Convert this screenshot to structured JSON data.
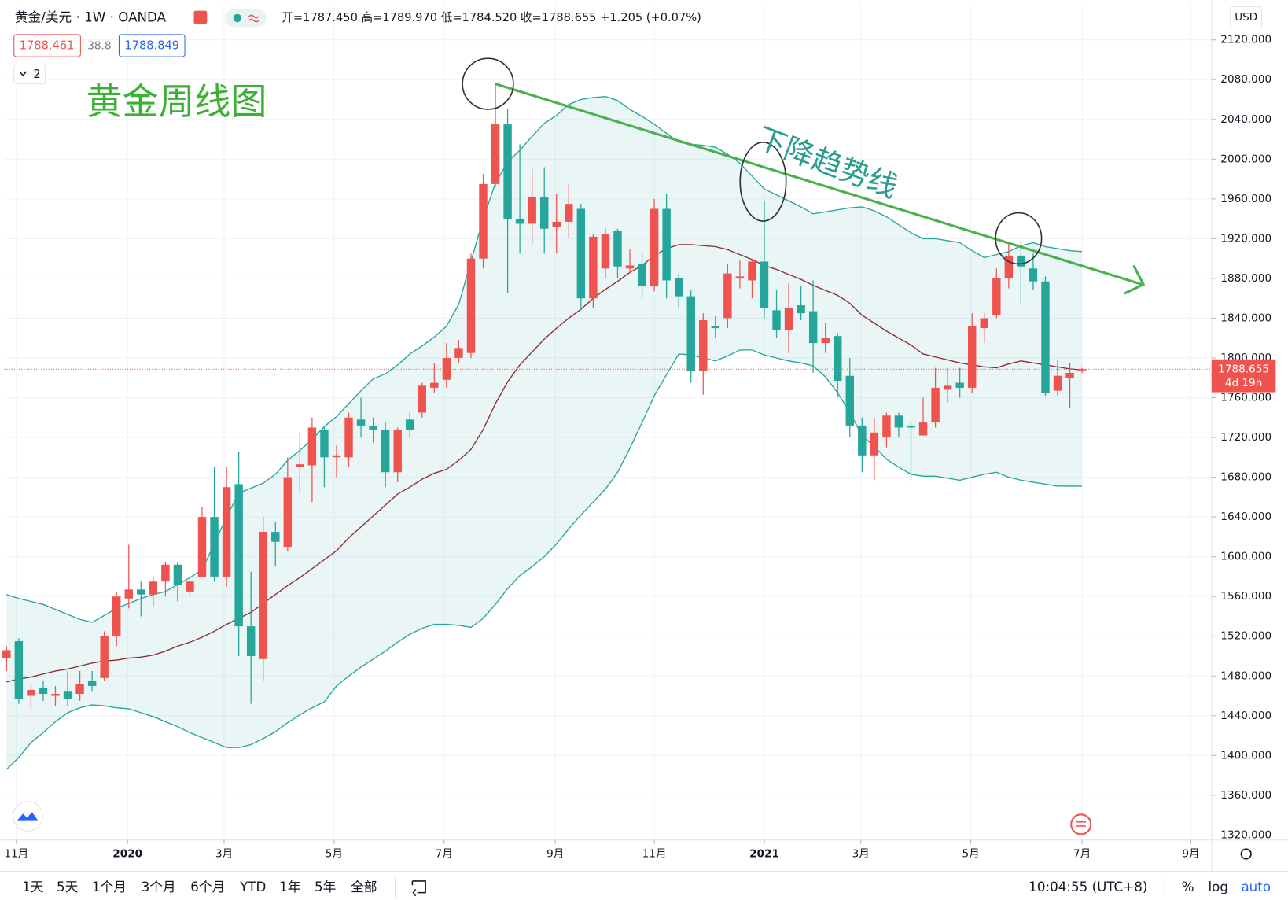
{
  "header": {
    "title": "黄金/美元 · 1W · OANDA",
    "ohlc": "开=1787.450 高=1789.970 低=1784.520 收=1788.655 +1.205 (+0.07%)",
    "bid": "1788.461",
    "spread": "38.8",
    "ask": "1788.849",
    "indicators_count": "2"
  },
  "annotations": {
    "chart_title": "黄金周线图",
    "trendline_label": "下降趋势线"
  },
  "price_axis": {
    "currency": "USD",
    "countdown": "4d 19h"
  },
  "toolbar": {
    "ranges": [
      "1天",
      "5天",
      "1个月",
      "3个月",
      "6个月",
      "YTD",
      "1年",
      "5年",
      "全部"
    ],
    "time": "10:04:55 (UTC+8)",
    "options": [
      "%",
      "log",
      "auto"
    ]
  },
  "chart_data": {
    "type": "candlestick",
    "open": [
      1498,
      1515,
      1460,
      1468,
      1460,
      1465,
      1462,
      1475,
      1478,
      1520,
      1558,
      1567,
      1562,
      1575,
      1592,
      1565,
      1580,
      1640,
      1580,
      1673,
      1530,
      1497,
      1625,
      1610,
      1690,
      1692,
      1728,
      1700,
      1700,
      1738,
      1732,
      1728,
      1685,
      1738,
      1745,
      1770,
      1778,
      1800,
      1805,
      1900,
      1975,
      2035,
      1940,
      1935,
      1962,
      1932,
      1937,
      1950,
      1860,
      1890,
      1928,
      1890,
      1895,
      1872,
      1950,
      1880,
      1862,
      1787,
      1832,
      1840,
      1880,
      1878,
      1897,
      1848,
      1828,
      1853,
      1847,
      1815,
      1822,
      1782,
      1732,
      1702,
      1720,
      1742,
      1732,
      1722,
      1735,
      1768,
      1775,
      1770,
      1830,
      1843,
      1880,
      1903,
      1890,
      1877,
      1767,
      1780,
      1787.45
    ],
    "high": [
      1510,
      1518,
      1472,
      1475,
      1470,
      1485,
      1485,
      1485,
      1525,
      1565,
      1612,
      1575,
      1580,
      1595,
      1595,
      1580,
      1650,
      1690,
      1690,
      1705,
      1585,
      1640,
      1635,
      1700,
      1725,
      1740,
      1730,
      1712,
      1745,
      1760,
      1740,
      1735,
      1730,
      1745,
      1775,
      1795,
      1815,
      1818,
      1905,
      1985,
      2075,
      2050,
      2015,
      1990,
      1992,
      1965,
      1975,
      1955,
      1925,
      1930,
      1930,
      1910,
      1905,
      1960,
      1965,
      1885,
      1868,
      1845,
      1842,
      1895,
      1898,
      1900,
      1958,
      1868,
      1875,
      1872,
      1878,
      1835,
      1825,
      1800,
      1740,
      1740,
      1745,
      1745,
      1735,
      1760,
      1790,
      1790,
      1790,
      1845,
      1845,
      1890,
      1915,
      1918,
      1905,
      1882,
      1798,
      1795,
      1789.97
    ],
    "low": [
      1485,
      1452,
      1447,
      1455,
      1450,
      1450,
      1455,
      1465,
      1475,
      1510,
      1548,
      1540,
      1550,
      1560,
      1555,
      1560,
      1580,
      1575,
      1570,
      1500,
      1452,
      1475,
      1590,
      1605,
      1665,
      1655,
      1670,
      1680,
      1690,
      1720,
      1715,
      1670,
      1675,
      1720,
      1740,
      1765,
      1770,
      1795,
      1800,
      1890,
      1972,
      1865,
      1905,
      1915,
      1905,
      1905,
      1920,
      1848,
      1850,
      1880,
      1880,
      1885,
      1860,
      1867,
      1860,
      1850,
      1775,
      1763,
      1820,
      1830,
      1870,
      1860,
      1840,
      1820,
      1805,
      1838,
      1785,
      1805,
      1760,
      1720,
      1685,
      1677,
      1710,
      1720,
      1677,
      1722,
      1730,
      1755,
      1760,
      1765,
      1815,
      1840,
      1870,
      1855,
      1868,
      1762,
      1762,
      1750,
      1784.52
    ],
    "close": [
      1506,
      1457,
      1466,
      1462,
      1462,
      1457,
      1472,
      1470,
      1520,
      1560,
      1567,
      1562,
      1575,
      1592,
      1572,
      1575,
      1640,
      1580,
      1670,
      1530,
      1500,
      1625,
      1615,
      1680,
      1693,
      1730,
      1700,
      1702,
      1740,
      1732,
      1728,
      1685,
      1728,
      1728,
      1772,
      1775,
      1800,
      1810,
      1900,
      1975,
      2035,
      1940,
      1935,
      1962,
      1930,
      1937,
      1955,
      1860,
      1922,
      1925,
      1892,
      1893,
      1872,
      1950,
      1878,
      1862,
      1787,
      1838,
      1830,
      1885,
      1882,
      1897,
      1850,
      1828,
      1850,
      1845,
      1815,
      1820,
      1777,
      1732,
      1702,
      1725,
      1742,
      1730,
      1730,
      1735,
      1770,
      1772,
      1770,
      1832,
      1840,
      1880,
      1903,
      1892,
      1877,
      1765,
      1782,
      1785,
      1788.655
    ],
    "up_color": "#ef5350",
    "down_color": "#26a69a",
    "bands": {
      "upper": [
        1562,
        1558,
        1555,
        1552,
        1547,
        1542,
        1537,
        1534,
        1541,
        1548,
        1553,
        1558,
        1562,
        1565,
        1572,
        1579,
        1587,
        1613,
        1640,
        1664,
        1669,
        1674,
        1683,
        1697,
        1707,
        1718,
        1731,
        1741,
        1754,
        1767,
        1779,
        1784,
        1793,
        1804,
        1812,
        1821,
        1832,
        1854,
        1897,
        1940,
        1976,
        1997,
        2009,
        2023,
        2036,
        2044,
        2055,
        2060,
        2062,
        2063,
        2059,
        2050,
        2043,
        2035,
        2026,
        2017,
        2015,
        2014,
        2012,
        2005,
        1996,
        1983,
        1970,
        1964,
        1958,
        1952,
        1945,
        1947,
        1949,
        1951,
        1952,
        1948,
        1942,
        1934,
        1926,
        1920,
        1920,
        1918,
        1916,
        1908,
        1901,
        1904,
        1907,
        1913,
        1916,
        1912,
        1910,
        1908,
        1907
      ],
      "middle": [
        1474,
        1477,
        1479,
        1482,
        1485,
        1487,
        1490,
        1493,
        1495,
        1496,
        1498,
        1499,
        1501,
        1505,
        1510,
        1514,
        1519,
        1525,
        1532,
        1538,
        1544,
        1553,
        1562,
        1571,
        1579,
        1588,
        1597,
        1606,
        1619,
        1630,
        1641,
        1652,
        1663,
        1670,
        1678,
        1684,
        1688,
        1697,
        1708,
        1728,
        1754,
        1776,
        1793,
        1806,
        1819,
        1830,
        1840,
        1849,
        1860,
        1869,
        1877,
        1886,
        1893,
        1903,
        1910,
        1914,
        1914,
        1913,
        1912,
        1909,
        1904,
        1899,
        1893,
        1889,
        1884,
        1879,
        1873,
        1868,
        1863,
        1855,
        1843,
        1835,
        1827,
        1820,
        1813,
        1804,
        1801,
        1798,
        1795,
        1793,
        1791,
        1790,
        1794,
        1797,
        1795,
        1793,
        1791,
        1789,
        1788
      ],
      "lower": [
        1386,
        1398,
        1413,
        1423,
        1434,
        1443,
        1448,
        1451,
        1450,
        1448,
        1447,
        1443,
        1439,
        1434,
        1429,
        1423,
        1418,
        1413,
        1408,
        1408,
        1411,
        1417,
        1424,
        1433,
        1441,
        1448,
        1454,
        1470,
        1480,
        1489,
        1497,
        1505,
        1514,
        1522,
        1528,
        1532,
        1532,
        1531,
        1529,
        1538,
        1552,
        1568,
        1581,
        1590,
        1600,
        1613,
        1628,
        1642,
        1655,
        1668,
        1685,
        1709,
        1735,
        1762,
        1783,
        1804,
        1803,
        1800,
        1797,
        1802,
        1808,
        1808,
        1803,
        1800,
        1797,
        1795,
        1792,
        1781,
        1765,
        1745,
        1722,
        1711,
        1698,
        1690,
        1683,
        1681,
        1681,
        1679,
        1677,
        1680,
        1683,
        1685,
        1680,
        1677,
        1675,
        1673,
        1671,
        1671,
        1671
      ],
      "band_color": "#26a69a",
      "middle_color": "#8b2e2e"
    },
    "xlim": [
      -0.2,
      98.6
    ],
    "xticks": [
      {
        "value": 0.8,
        "label": "11月"
      },
      {
        "value": 9.9,
        "label": "2020"
      },
      {
        "value": 17.8,
        "label": "3月"
      },
      {
        "value": 26.8,
        "label": "5月"
      },
      {
        "value": 35.8,
        "label": "7月"
      },
      {
        "value": 44.9,
        "label": "9月"
      },
      {
        "value": 53.0,
        "label": "11月"
      },
      {
        "value": 62.0,
        "label": "2021"
      },
      {
        "value": 69.9,
        "label": "3月"
      },
      {
        "value": 78.9,
        "label": "5月"
      },
      {
        "value": 88.0,
        "label": "7月"
      },
      {
        "value": 96.9,
        "label": "9月"
      }
    ],
    "ylim": [
      1315,
      2156
    ],
    "yticks": [
      {
        "value": 1320,
        "label": "1320.000"
      },
      {
        "value": 1360,
        "label": "1360.000"
      },
      {
        "value": 1400,
        "label": "1400.000"
      },
      {
        "value": 1440,
        "label": "1440.000"
      },
      {
        "value": 1480,
        "label": "1480.000"
      },
      {
        "value": 1520,
        "label": "1520.000"
      },
      {
        "value": 1560,
        "label": "1560.000"
      },
      {
        "value": 1600,
        "label": "1600.000"
      },
      {
        "value": 1640,
        "label": "1640.000"
      },
      {
        "value": 1680,
        "label": "1680.000"
      },
      {
        "value": 1720,
        "label": "1720.000"
      },
      {
        "value": 1760,
        "label": "1760.000"
      },
      {
        "value": 1800,
        "label": "1800.000"
      },
      {
        "value": 1840,
        "label": "1840.000"
      },
      {
        "value": 1880,
        "label": "1880.000"
      },
      {
        "value": 1920,
        "label": "1920.000"
      },
      {
        "value": 1960,
        "label": "1960.000"
      },
      {
        "value": 2000,
        "label": "2000.000"
      },
      {
        "value": 2040,
        "label": "2040.000"
      },
      {
        "value": 2080,
        "label": "2080.000"
      },
      {
        "value": 2120,
        "label": "2120.000"
      }
    ],
    "grid": true
  }
}
